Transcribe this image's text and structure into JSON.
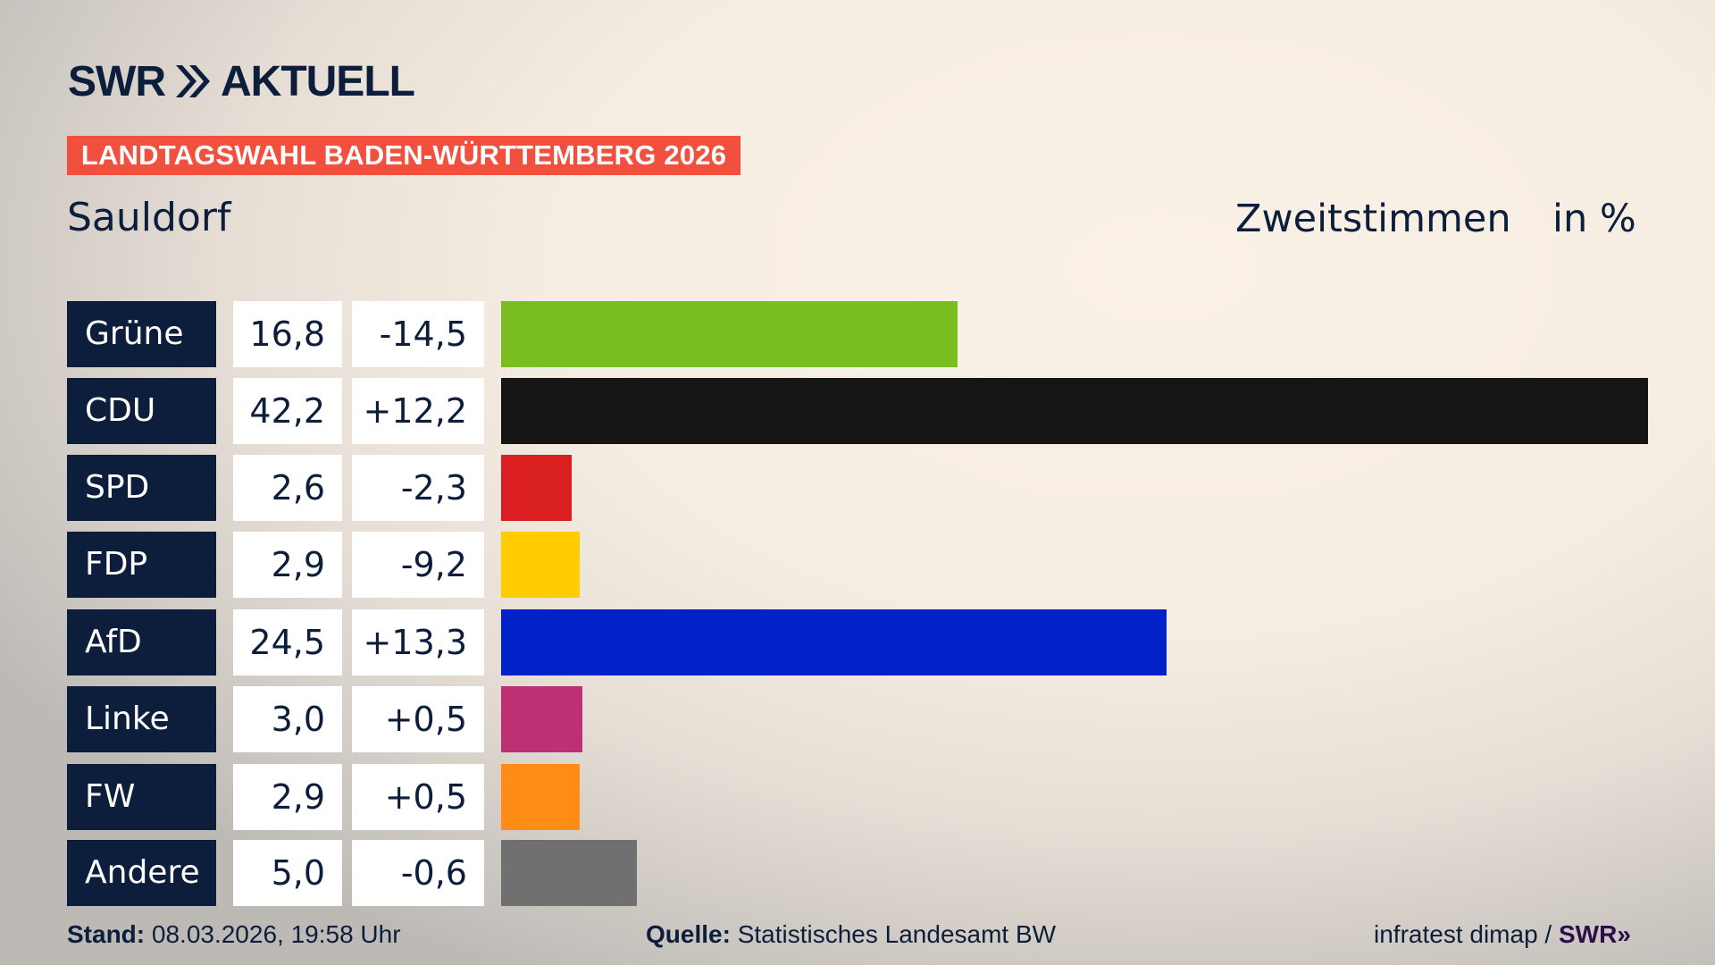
{
  "logo": {
    "text": "SWR AKTUELL",
    "swr": "SWR",
    "aktuell": "AKTUELL"
  },
  "banner": "LANDTAGSWAHL BADEN-WÜRTTEMBERG 2026",
  "place": "Sauldorf",
  "measure": "Zweitstimmen",
  "unit": "in %",
  "chart_data": {
    "type": "bar",
    "orientation": "horizontal",
    "categories": [
      "Grüne",
      "CDU",
      "SPD",
      "FDP",
      "AfD",
      "Linke",
      "FW",
      "Andere"
    ],
    "values": [
      16.8,
      42.2,
      2.6,
      2.9,
      24.5,
      3.0,
      2.9,
      5.0
    ],
    "value_labels": [
      "16,8",
      "42,2",
      "2,6",
      "2,9",
      "24,5",
      "3,0",
      "2,9",
      "5,0"
    ],
    "changes": [
      -14.5,
      12.2,
      -2.3,
      -9.2,
      13.3,
      0.5,
      0.5,
      -0.6
    ],
    "change_labels": [
      "-14,5",
      "+12,2",
      "-2,3",
      "-9,2",
      "+13,3",
      "+0,5",
      "+0,5",
      "-0,6"
    ],
    "colors": [
      "#78be20",
      "#151515",
      "#d91f1f",
      "#ffcc00",
      "#0022c8",
      "#be3075",
      "#ff8c14",
      "#707070"
    ],
    "title": "Zweitstimmen",
    "ylabel": "in %"
  },
  "footer": {
    "stand_label": "Stand:",
    "stand_value": "08.03.2026, 19:58 Uhr",
    "source_label": "Quelle:",
    "source_value": "Statistisches Landesamt BW",
    "credit": "infratest dimap /",
    "credit_logo": "SWR"
  }
}
